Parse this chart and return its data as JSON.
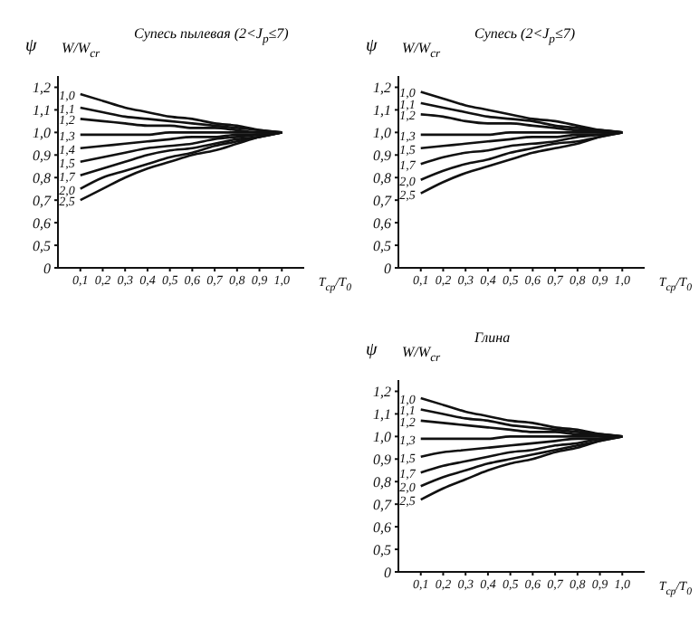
{
  "chart_data": [
    {
      "type": "line",
      "title": "Супесь пылевая (2<J$_{p}$≤7)",
      "ylabel": "ψ",
      "legend_title": "W/W$_{cr}$",
      "xlabel": "T$_{ср}$/T$_{0}$",
      "legend": false,
      "grid": false,
      "marker": "none",
      "line_style": "solid",
      "x": [
        0.1,
        0.2,
        0.3,
        0.4,
        0.5,
        0.6,
        0.7,
        0.8,
        0.9,
        1.0
      ],
      "xlim": [
        0,
        1.1
      ],
      "xticks": [
        {
          "value": 0.1,
          "label": "0,1"
        },
        {
          "value": 0.2,
          "label": "0,2"
        },
        {
          "value": 0.3,
          "label": "0,3"
        },
        {
          "value": 0.4,
          "label": "0,4"
        },
        {
          "value": 0.5,
          "label": "0,5"
        },
        {
          "value": 0.6,
          "label": "0,6"
        },
        {
          "value": 0.7,
          "label": "0,7"
        },
        {
          "value": 0.8,
          "label": "0,8"
        },
        {
          "value": 0.9,
          "label": "0,9"
        },
        {
          "value": 1.0,
          "label": "1,0"
        }
      ],
      "ylim": [
        0.4,
        1.25
      ],
      "yticks": [
        {
          "value": 0.4,
          "label": "0"
        },
        {
          "value": 0.5,
          "label": "0,5"
        },
        {
          "value": 0.6,
          "label": "0,6"
        },
        {
          "value": 0.7,
          "label": "0,7"
        },
        {
          "value": 0.8,
          "label": "0,8"
        },
        {
          "value": 0.9,
          "label": "0,9"
        },
        {
          "value": 1.0,
          "label": "1,0"
        },
        {
          "value": 1.1,
          "label": "1,1"
        },
        {
          "value": 1.2,
          "label": "1,2"
        }
      ],
      "series": [
        {
          "name": "1,0",
          "color": "#111111",
          "values": [
            1.17,
            1.14,
            1.11,
            1.09,
            1.07,
            1.06,
            1.04,
            1.03,
            1.01,
            1.0
          ]
        },
        {
          "name": "1,1",
          "color": "#111111",
          "values": [
            1.11,
            1.09,
            1.07,
            1.06,
            1.05,
            1.04,
            1.03,
            1.02,
            1.01,
            1.0
          ]
        },
        {
          "name": "1,2",
          "color": "#111111",
          "values": [
            1.06,
            1.05,
            1.04,
            1.03,
            1.03,
            1.02,
            1.02,
            1.01,
            1.0,
            1.0
          ]
        },
        {
          "name": "1,3",
          "color": "#111111",
          "values": [
            0.99,
            0.99,
            0.99,
            0.99,
            1.0,
            1.0,
            1.0,
            1.0,
            1.0,
            1.0
          ]
        },
        {
          "name": "1,4",
          "color": "#111111",
          "values": [
            0.93,
            0.94,
            0.95,
            0.96,
            0.97,
            0.98,
            0.98,
            0.99,
            0.99,
            1.0
          ]
        },
        {
          "name": "1,5",
          "color": "#111111",
          "values": [
            0.87,
            0.89,
            0.91,
            0.93,
            0.94,
            0.95,
            0.97,
            0.98,
            0.99,
            1.0
          ]
        },
        {
          "name": "1,7",
          "color": "#111111",
          "values": [
            0.81,
            0.84,
            0.87,
            0.9,
            0.92,
            0.93,
            0.95,
            0.97,
            0.98,
            1.0
          ]
        },
        {
          "name": "2,0",
          "color": "#111111",
          "values": [
            0.75,
            0.8,
            0.83,
            0.86,
            0.89,
            0.91,
            0.94,
            0.96,
            0.98,
            1.0
          ]
        },
        {
          "name": "2,5",
          "color": "#111111",
          "values": [
            0.7,
            0.75,
            0.8,
            0.84,
            0.87,
            0.9,
            0.92,
            0.95,
            0.98,
            1.0
          ]
        }
      ]
    },
    {
      "type": "line",
      "title": "Супесь (2<J$_{p}$≤7)",
      "ylabel": "ψ",
      "legend_title": "W/W$_{cr}$",
      "xlabel": "T$_{ср}$/T$_{0}$",
      "legend": false,
      "grid": false,
      "marker": "none",
      "line_style": "solid",
      "x": [
        0.1,
        0.2,
        0.3,
        0.4,
        0.5,
        0.6,
        0.7,
        0.8,
        0.9,
        1.0
      ],
      "xlim": [
        0,
        1.1
      ],
      "xticks": [
        {
          "value": 0.1,
          "label": "0,1"
        },
        {
          "value": 0.2,
          "label": "0,2"
        },
        {
          "value": 0.3,
          "label": "0,3"
        },
        {
          "value": 0.4,
          "label": "0,4"
        },
        {
          "value": 0.5,
          "label": "0,5"
        },
        {
          "value": 0.6,
          "label": "0,6"
        },
        {
          "value": 0.7,
          "label": "0,7"
        },
        {
          "value": 0.8,
          "label": "0,8"
        },
        {
          "value": 0.9,
          "label": "0,9"
        },
        {
          "value": 1.0,
          "label": "1,0"
        }
      ],
      "ylim": [
        0.4,
        1.25
      ],
      "yticks": [
        {
          "value": 0.4,
          "label": "0"
        },
        {
          "value": 0.5,
          "label": "0,5"
        },
        {
          "value": 0.6,
          "label": "0,6"
        },
        {
          "value": 0.7,
          "label": "0,7"
        },
        {
          "value": 0.8,
          "label": "0,8"
        },
        {
          "value": 0.9,
          "label": "0,9"
        },
        {
          "value": 1.0,
          "label": "1,0"
        },
        {
          "value": 1.1,
          "label": "1,1"
        },
        {
          "value": 1.2,
          "label": "1,2"
        }
      ],
      "series": [
        {
          "name": "1,0",
          "color": "#111111",
          "values": [
            1.18,
            1.15,
            1.12,
            1.1,
            1.08,
            1.06,
            1.05,
            1.03,
            1.01,
            1.0
          ]
        },
        {
          "name": "1,1",
          "color": "#111111",
          "values": [
            1.13,
            1.11,
            1.09,
            1.07,
            1.06,
            1.05,
            1.03,
            1.02,
            1.01,
            1.0
          ]
        },
        {
          "name": "1,2",
          "color": "#111111",
          "values": [
            1.08,
            1.07,
            1.05,
            1.04,
            1.04,
            1.03,
            1.02,
            1.01,
            1.01,
            1.0
          ]
        },
        {
          "name": "1,3",
          "color": "#111111",
          "values": [
            0.99,
            0.99,
            0.99,
            0.99,
            1.0,
            1.0,
            1.0,
            1.0,
            1.0,
            1.0
          ]
        },
        {
          "name": "1,5",
          "color": "#111111",
          "values": [
            0.93,
            0.94,
            0.95,
            0.96,
            0.97,
            0.98,
            0.98,
            0.99,
            0.99,
            1.0
          ]
        },
        {
          "name": "1,7",
          "color": "#111111",
          "values": [
            0.86,
            0.89,
            0.91,
            0.92,
            0.94,
            0.95,
            0.96,
            0.98,
            0.99,
            1.0
          ]
        },
        {
          "name": "2,0",
          "color": "#111111",
          "values": [
            0.79,
            0.83,
            0.86,
            0.88,
            0.91,
            0.93,
            0.95,
            0.96,
            0.98,
            1.0
          ]
        },
        {
          "name": "2,5",
          "color": "#111111",
          "values": [
            0.73,
            0.78,
            0.82,
            0.85,
            0.88,
            0.91,
            0.93,
            0.95,
            0.98,
            1.0
          ]
        }
      ]
    },
    {
      "type": "line",
      "title": "Глина",
      "ylabel": "ψ",
      "legend_title": "W/W$_{cr}$",
      "xlabel": "T$_{ср}$/T$_{0}$",
      "legend": false,
      "grid": false,
      "marker": "none",
      "line_style": "solid",
      "x": [
        0.1,
        0.2,
        0.3,
        0.4,
        0.5,
        0.6,
        0.7,
        0.8,
        0.9,
        1.0
      ],
      "xlim": [
        0,
        1.1
      ],
      "xticks": [
        {
          "value": 0.1,
          "label": "0,1"
        },
        {
          "value": 0.2,
          "label": "0,2"
        },
        {
          "value": 0.3,
          "label": "0,3"
        },
        {
          "value": 0.4,
          "label": "0,4"
        },
        {
          "value": 0.5,
          "label": "0,5"
        },
        {
          "value": 0.6,
          "label": "0,6"
        },
        {
          "value": 0.7,
          "label": "0,7"
        },
        {
          "value": 0.8,
          "label": "0,8"
        },
        {
          "value": 0.9,
          "label": "0,9"
        },
        {
          "value": 1.0,
          "label": "1,0"
        }
      ],
      "ylim": [
        0.4,
        1.25
      ],
      "yticks": [
        {
          "value": 0.4,
          "label": "0"
        },
        {
          "value": 0.5,
          "label": "0,5"
        },
        {
          "value": 0.6,
          "label": "0,6"
        },
        {
          "value": 0.7,
          "label": "0,7"
        },
        {
          "value": 0.8,
          "label": "0,8"
        },
        {
          "value": 0.9,
          "label": "0,9"
        },
        {
          "value": 1.0,
          "label": "1,0"
        },
        {
          "value": 1.1,
          "label": "1,1"
        },
        {
          "value": 1.2,
          "label": "1,2"
        }
      ],
      "series": [
        {
          "name": "1,0",
          "color": "#111111",
          "values": [
            1.17,
            1.14,
            1.11,
            1.09,
            1.07,
            1.06,
            1.04,
            1.03,
            1.01,
            1.0
          ]
        },
        {
          "name": "1,1",
          "color": "#111111",
          "values": [
            1.12,
            1.1,
            1.08,
            1.07,
            1.05,
            1.04,
            1.03,
            1.02,
            1.01,
            1.0
          ]
        },
        {
          "name": "1,2",
          "color": "#111111",
          "values": [
            1.07,
            1.06,
            1.05,
            1.04,
            1.03,
            1.02,
            1.02,
            1.01,
            1.01,
            1.0
          ]
        },
        {
          "name": "1,3",
          "color": "#111111",
          "values": [
            0.99,
            0.99,
            0.99,
            0.99,
            1.0,
            1.0,
            1.0,
            1.0,
            1.0,
            1.0
          ]
        },
        {
          "name": "1,5",
          "color": "#111111",
          "values": [
            0.91,
            0.93,
            0.94,
            0.95,
            0.96,
            0.97,
            0.98,
            0.99,
            0.99,
            1.0
          ]
        },
        {
          "name": "1,7",
          "color": "#111111",
          "values": [
            0.84,
            0.87,
            0.89,
            0.91,
            0.93,
            0.94,
            0.96,
            0.97,
            0.99,
            1.0
          ]
        },
        {
          "name": "2,0",
          "color": "#111111",
          "values": [
            0.78,
            0.82,
            0.85,
            0.88,
            0.9,
            0.92,
            0.94,
            0.96,
            0.98,
            1.0
          ]
        },
        {
          "name": "2,5",
          "color": "#111111",
          "values": [
            0.72,
            0.77,
            0.81,
            0.85,
            0.88,
            0.9,
            0.93,
            0.95,
            0.98,
            1.0
          ]
        }
      ]
    }
  ]
}
